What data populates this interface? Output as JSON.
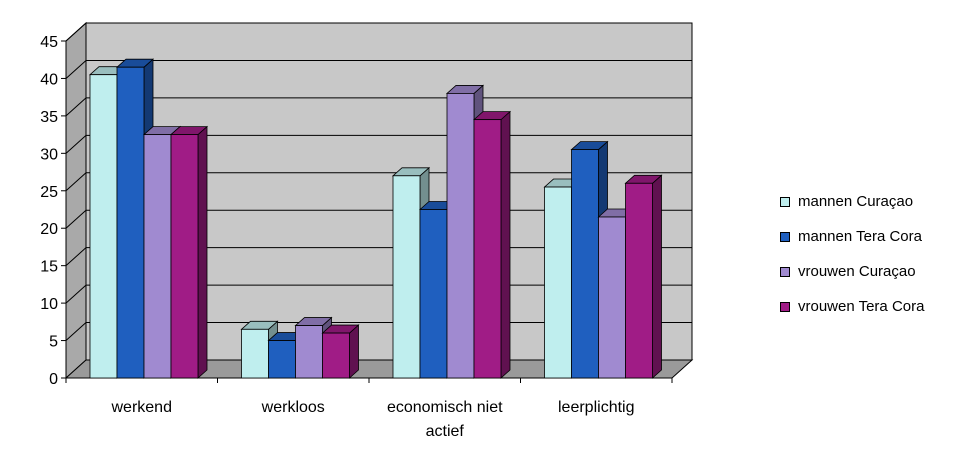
{
  "chart_data": {
    "type": "bar",
    "title": "",
    "xlabel": "",
    "ylabel": "",
    "ylim": [
      0,
      45
    ],
    "yticks": [
      0,
      5,
      10,
      15,
      20,
      25,
      30,
      35,
      40,
      45
    ],
    "grid": true,
    "legend_position": "right",
    "categories": [
      [
        "werkend"
      ],
      [
        "werkloos"
      ],
      [
        "economisch niet",
        "actief"
      ],
      [
        "leerplichtig"
      ]
    ],
    "series": [
      {
        "name": "mannen Curaçao",
        "color": "#bfeeee",
        "values": [
          40.5,
          6.5,
          27,
          25.5
        ]
      },
      {
        "name": "mannen Tera Cora",
        "color": "#1f5fbf",
        "values": [
          41.5,
          5,
          22.5,
          30.5
        ]
      },
      {
        "name": "vrouwen Curaçao",
        "color": "#a08ad0",
        "values": [
          32.5,
          7,
          38,
          21.5
        ]
      },
      {
        "name": "vrouwen Tera Cora",
        "color": "#a01c86",
        "values": [
          32.5,
          6,
          34.5,
          26
        ]
      }
    ]
  }
}
